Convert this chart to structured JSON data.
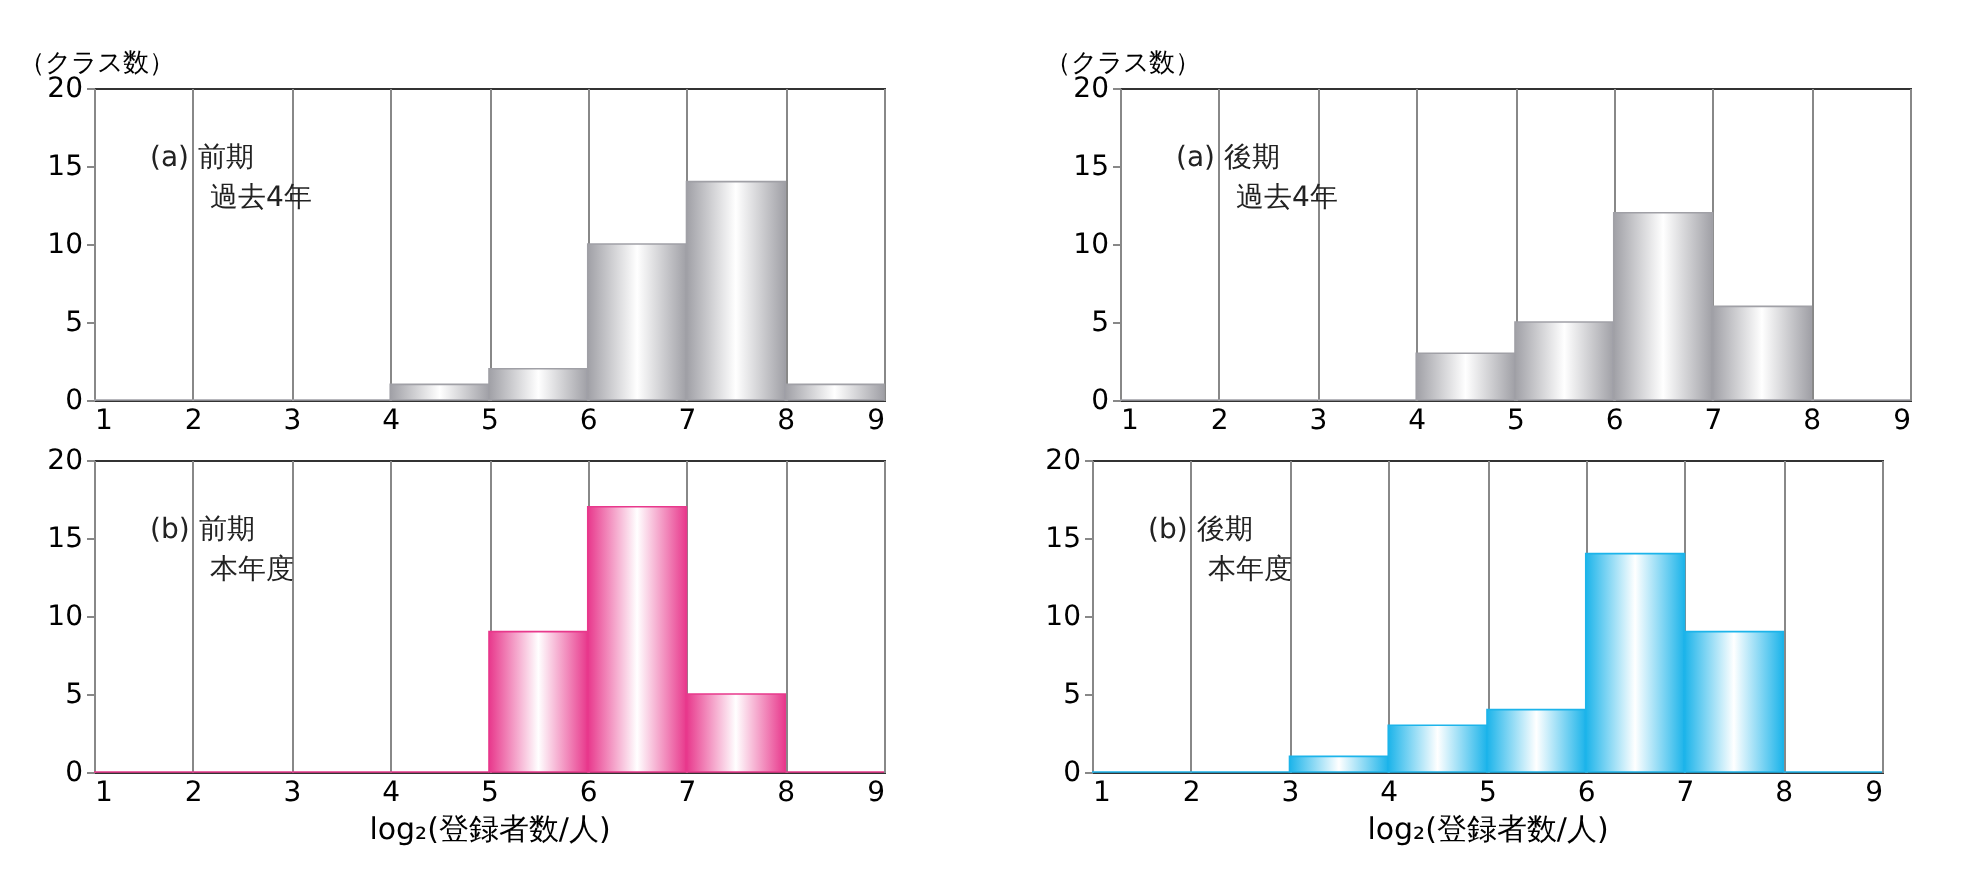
{
  "chart_data": [
    {
      "type": "histogram",
      "ylabel": "（クラス数）",
      "annotations": [
        "(a) 前期",
        "過去4年"
      ],
      "bins": [
        1,
        2,
        3,
        4,
        5,
        6,
        7,
        8,
        9
      ],
      "values": [
        0,
        0,
        0,
        1,
        2,
        10,
        14,
        1
      ],
      "color": "#a0a0a6",
      "xlim": [
        1,
        9
      ],
      "xticks": [
        1,
        2,
        3,
        4,
        5,
        6,
        7,
        8,
        9
      ],
      "ylim": [
        0,
        20
      ],
      "yticks": [
        0,
        5,
        10,
        15,
        20
      ],
      "grid": "x"
    },
    {
      "type": "histogram",
      "ylabel": "（クラス数）",
      "annotations": [
        "(a) 後期",
        "過去4年"
      ],
      "bins": [
        1,
        2,
        3,
        4,
        5,
        6,
        7,
        8,
        9
      ],
      "values": [
        0,
        0,
        0,
        3,
        5,
        12,
        6,
        0
      ],
      "color": "#a0a0a6",
      "xlim": [
        1,
        9
      ],
      "xticks": [
        1,
        2,
        3,
        4,
        5,
        6,
        7,
        8,
        9
      ],
      "ylim": [
        0,
        20
      ],
      "yticks": [
        0,
        5,
        10,
        15,
        20
      ],
      "grid": "x"
    },
    {
      "type": "histogram",
      "xlabel": "log₂(登録者数/人)",
      "annotations": [
        "(b) 前期",
        "本年度"
      ],
      "bins": [
        1,
        2,
        3,
        4,
        5,
        6,
        7,
        8,
        9
      ],
      "values": [
        0,
        0,
        0,
        0,
        9,
        17,
        5,
        0
      ],
      "color": "#e8388c",
      "xlim": [
        1,
        9
      ],
      "xticks": [
        1,
        2,
        3,
        4,
        5,
        6,
        7,
        8,
        9
      ],
      "ylim": [
        0,
        20
      ],
      "yticks": [
        0,
        5,
        10,
        15,
        20
      ],
      "grid": "x"
    },
    {
      "type": "histogram",
      "xlabel": "log₂(登録者数/人)",
      "annotations": [
        "(b) 後期",
        "本年度"
      ],
      "bins": [
        1,
        2,
        3,
        4,
        5,
        6,
        7,
        8,
        9
      ],
      "values": [
        0,
        0,
        1,
        3,
        4,
        14,
        9,
        0
      ],
      "color": "#1cb4ea",
      "xlim": [
        1,
        9
      ],
      "xticks": [
        1,
        2,
        3,
        4,
        5,
        6,
        7,
        8,
        9
      ],
      "ylim": [
        0,
        20
      ],
      "yticks": [
        0,
        5,
        10,
        15,
        20
      ],
      "grid": "x"
    }
  ]
}
